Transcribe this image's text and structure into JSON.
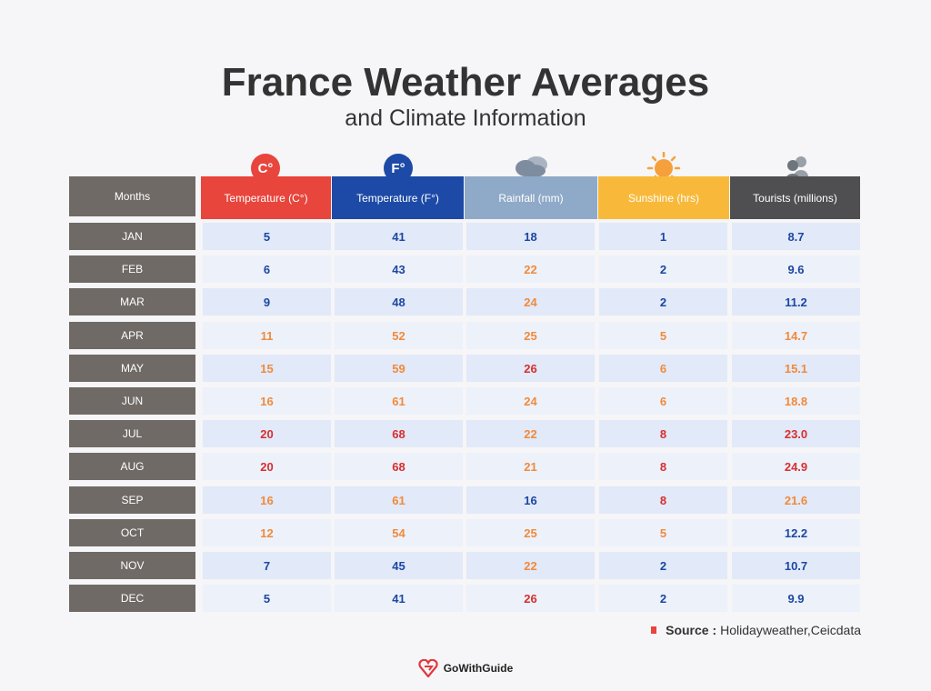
{
  "title": "France Weather Averages",
  "subtitle": "and Climate Information",
  "icons": {
    "celsius": "C°",
    "fahrenheit": "F°"
  },
  "colors": {
    "cold": "#1c47a3",
    "mild": "#f08a3c",
    "hot": "#d62f2f"
  },
  "source": {
    "label": "Source :",
    "text": "Holidayweather,Ceicdata"
  },
  "brand": "GoWithGuide",
  "chart_data": {
    "type": "table",
    "title": "France Weather Averages",
    "subtitle": "and Climate Information",
    "columns": [
      "Months",
      "Temperature (C°)",
      "Temperature (F°)",
      "Rainfall (mm)",
      "Sunshine (hrs)",
      "Tourists (millions)"
    ],
    "rows": [
      [
        "JAN",
        "5",
        "41",
        "18",
        "1",
        "8.7"
      ],
      [
        "FEB",
        "6",
        "43",
        "22",
        "2",
        "9.6"
      ],
      [
        "MAR",
        "9",
        "48",
        "24",
        "2",
        "11.2"
      ],
      [
        "APR",
        "11",
        "52",
        "25",
        "5",
        "14.7"
      ],
      [
        "MAY",
        "15",
        "59",
        "26",
        "6",
        "15.1"
      ],
      [
        "JUN",
        "16",
        "61",
        "24",
        "6",
        "18.8"
      ],
      [
        "JUL",
        "20",
        "68",
        "22",
        "8",
        "23.0"
      ],
      [
        "AUG",
        "20",
        "68",
        "21",
        "8",
        "24.9"
      ],
      [
        "SEP",
        "16",
        "61",
        "16",
        "8",
        "21.6"
      ],
      [
        "OCT",
        "12",
        "54",
        "25",
        "5",
        "12.2"
      ],
      [
        "NOV",
        "7",
        "45",
        "22",
        "2",
        "10.7"
      ],
      [
        "DEC",
        "5",
        "41",
        "26",
        "2",
        "9.9"
      ]
    ],
    "value_colors": [
      [
        "cold",
        "cold",
        "cold",
        "cold",
        "cold"
      ],
      [
        "cold",
        "cold",
        "mild",
        "cold",
        "cold"
      ],
      [
        "cold",
        "cold",
        "mild",
        "cold",
        "cold"
      ],
      [
        "mild",
        "mild",
        "mild",
        "mild",
        "mild"
      ],
      [
        "mild",
        "mild",
        "hot",
        "mild",
        "mild"
      ],
      [
        "mild",
        "mild",
        "mild",
        "mild",
        "mild"
      ],
      [
        "hot",
        "hot",
        "mild",
        "hot",
        "hot"
      ],
      [
        "hot",
        "hot",
        "mild",
        "hot",
        "hot"
      ],
      [
        "mild",
        "mild",
        "cold",
        "hot",
        "mild"
      ],
      [
        "mild",
        "mild",
        "mild",
        "mild",
        "cold"
      ],
      [
        "cold",
        "cold",
        "mild",
        "cold",
        "cold"
      ],
      [
        "cold",
        "cold",
        "hot",
        "cold",
        "cold"
      ]
    ]
  }
}
